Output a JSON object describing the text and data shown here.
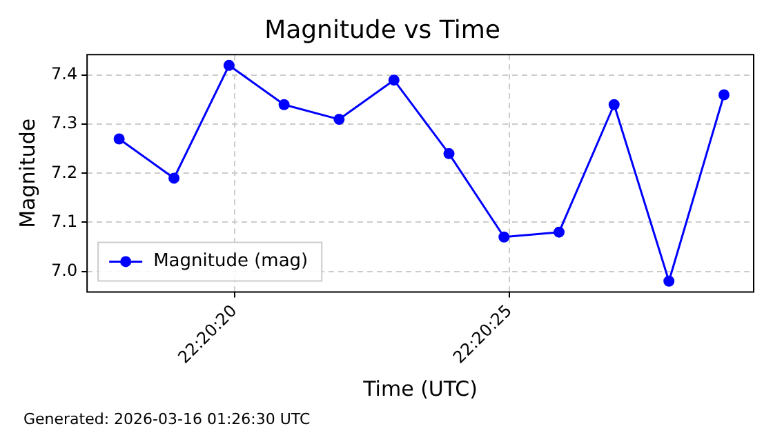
{
  "chart_data": {
    "type": "line",
    "title": "Magnitude vs Time",
    "xlabel": "Time (UTC)",
    "ylabel": "Magnitude",
    "x": [
      22.338306,
      22.338583,
      22.338861,
      22.339139,
      22.339417,
      22.339694,
      22.339972,
      22.34025,
      22.340528,
      22.340806,
      22.341083,
      22.341361
    ],
    "series": [
      {
        "name": "Magnitude (mag)",
        "color": "#0000ff",
        "values": [
          7.27,
          7.19,
          7.42,
          7.34,
          7.31,
          7.39,
          7.24,
          7.07,
          7.08,
          7.34,
          6.98,
          7.36
        ]
      }
    ],
    "xlim": [
      22.338144,
      22.341511
    ],
    "xticks": [
      {
        "value": 22.338889,
        "label": "22:20:20"
      },
      {
        "value": 22.340278,
        "label": "22:20:25"
      }
    ],
    "ylim": [
      6.958,
      7.442
    ],
    "yticks": [
      {
        "value": 7.0,
        "label": "7.0"
      },
      {
        "value": 7.1,
        "label": "7.1"
      },
      {
        "value": 7.2,
        "label": "7.2"
      },
      {
        "value": 7.3,
        "label": "7.3"
      },
      {
        "value": 7.4,
        "label": "7.4"
      }
    ],
    "grid": true,
    "legend": "bottom left",
    "marker": "circle",
    "line_style": "solid",
    "annotations": [
      "Generated: 2026-03-16 01:26:30 UTC"
    ]
  }
}
